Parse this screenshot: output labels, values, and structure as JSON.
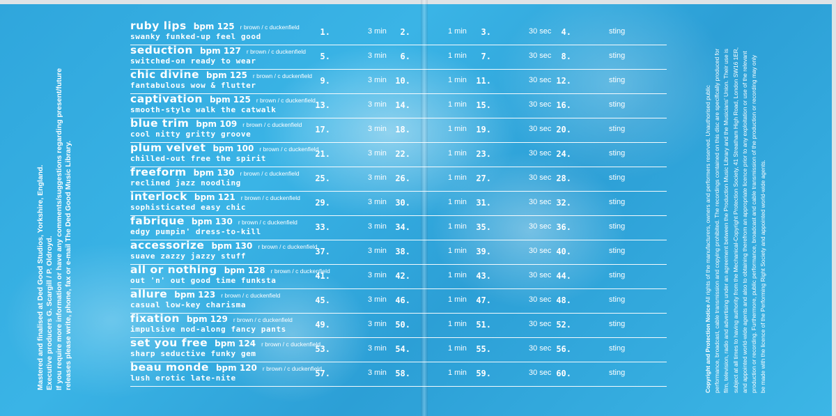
{
  "left_panel": {
    "lines": [
      "Mastered and finalised at Ded Good Studios, Yorkshire, England.",
      "Executive producers G. Scargill / P. Oldroyd.",
      "If you require more information or have any comments/suggestions regarding present/future",
      "releases please write, phone, fax or e-mail The Ded Good Music Library."
    ]
  },
  "notice": {
    "title": "Copyright and Protection Notice",
    "lines": [
      "All rights of the manufacturers, owners and performers reserved. Unauthorised public",
      "performance, broadcast, cable transmission and copying prohibited. The recordings contained on this disc are specifically produced for",
      "film, television, radio and advertising under an agreement between the Production Music Library and the Musicians' Union. Their use is",
      "subject at all times to having authority from the Mechanical-Copyright Protection Society, 41 Streatham High Road, London SW16 1ER,",
      "and appointed world-wide agents and also to obtaining therefrom an appropriate licence prior to any exploitation or use of the relevant",
      "production or recording. Furthermore, public performance, broadcast and cable transmission of the production or recording may only",
      "be made with the licence of the Performing Right Society and appointed world-wide agents."
    ]
  },
  "colors": {
    "background": "#34aee3",
    "text": "#ffffff"
  },
  "tracks": [
    {
      "title": "ruby lips",
      "bpm": "bpm 125",
      "credit": "r brown / c duckenfield",
      "desc": "swanky funked-up feel good",
      "cues": [
        {
          "n": "1.",
          "d": "3 min"
        },
        {
          "n": "2.",
          "d": "1 min"
        },
        {
          "n": "3.",
          "d": "30 sec"
        },
        {
          "n": "4.",
          "d": "sting"
        }
      ]
    },
    {
      "title": "seduction",
      "bpm": "bpm 127",
      "credit": "r brown / c duckenfield",
      "desc": "switched-on ready to wear",
      "cues": [
        {
          "n": "5.",
          "d": "3 min"
        },
        {
          "n": "6.",
          "d": "1 min"
        },
        {
          "n": "7.",
          "d": "30 sec"
        },
        {
          "n": "8.",
          "d": "sting"
        }
      ]
    },
    {
      "title": "chic divine",
      "bpm": "bpm 125",
      "credit": "r brown / c duckenfield",
      "desc": "fantabulous wow & flutter",
      "cues": [
        {
          "n": "9.",
          "d": "3 min"
        },
        {
          "n": "10.",
          "d": "1 min"
        },
        {
          "n": "11.",
          "d": "30 sec"
        },
        {
          "n": "12.",
          "d": "sting"
        }
      ]
    },
    {
      "title": "captivation",
      "bpm": "bpm 125",
      "credit": "r brown / c duckenfield",
      "desc": "smooth-style walk the catwalk",
      "cues": [
        {
          "n": "13.",
          "d": "3 min"
        },
        {
          "n": "14.",
          "d": "1 min"
        },
        {
          "n": "15.",
          "d": "30 sec"
        },
        {
          "n": "16.",
          "d": "sting"
        }
      ]
    },
    {
      "title": "blue trim",
      "bpm": "bpm 109",
      "credit": "r brown / c duckenfield",
      "desc": "cool nitty gritty groove",
      "cues": [
        {
          "n": "17.",
          "d": "3 min"
        },
        {
          "n": "18.",
          "d": "1 min"
        },
        {
          "n": "19.",
          "d": "30 sec"
        },
        {
          "n": "20.",
          "d": "sting"
        }
      ]
    },
    {
      "title": "plum velvet",
      "bpm": "bpm 100",
      "credit": "r brown / c duckenfield",
      "desc": "chilled-out free the spirit",
      "cues": [
        {
          "n": "21.",
          "d": "3 min"
        },
        {
          "n": "22.",
          "d": "1 min"
        },
        {
          "n": "23.",
          "d": "30 sec"
        },
        {
          "n": "24.",
          "d": "sting"
        }
      ]
    },
    {
      "title": "freeform",
      "bpm": "bpm 130",
      "credit": "r brown / c duckenfield",
      "desc": "reclined jazz noodling",
      "cues": [
        {
          "n": "25.",
          "d": "3 min"
        },
        {
          "n": "26.",
          "d": "1 min"
        },
        {
          "n": "27.",
          "d": "30 sec"
        },
        {
          "n": "28.",
          "d": "sting"
        }
      ]
    },
    {
      "title": "interlock",
      "bpm": "bpm 121",
      "credit": "r brown / c duckenfield",
      "desc": "sophisticated easy chic",
      "cues": [
        {
          "n": "29.",
          "d": "3 min"
        },
        {
          "n": "30.",
          "d": "1 min"
        },
        {
          "n": "31.",
          "d": "30 sec"
        },
        {
          "n": "32.",
          "d": "sting"
        }
      ]
    },
    {
      "title": "fabrique",
      "bpm": "bpm 130",
      "credit": "r brown / c duckenfield",
      "desc": "edgy pumpin' dress-to-kill",
      "cues": [
        {
          "n": "33.",
          "d": "3 min"
        },
        {
          "n": "34.",
          "d": "1 min"
        },
        {
          "n": "35.",
          "d": "30 sec"
        },
        {
          "n": "36.",
          "d": "sting"
        }
      ]
    },
    {
      "title": "accessorize",
      "bpm": "bpm 130",
      "credit": "r brown / c duckenfield",
      "desc": "suave zazzy jazzy stuff",
      "cues": [
        {
          "n": "37.",
          "d": "3 min"
        },
        {
          "n": "38.",
          "d": "1 min"
        },
        {
          "n": "39.",
          "d": "30 sec"
        },
        {
          "n": "40.",
          "d": "sting"
        }
      ]
    },
    {
      "title": "all or nothing",
      "bpm": "bpm 128",
      "credit": "r brown / c duckenfield",
      "desc": "out 'n' out good time funksta",
      "cues": [
        {
          "n": "41.",
          "d": "3 min"
        },
        {
          "n": "42.",
          "d": "1 min"
        },
        {
          "n": "43.",
          "d": "30 sec"
        },
        {
          "n": "44.",
          "d": "sting"
        }
      ]
    },
    {
      "title": "allure",
      "bpm": "bpm 123",
      "credit": "r brown / c duckenfield",
      "desc": "casual low-key charisma",
      "cues": [
        {
          "n": "45.",
          "d": "3 min"
        },
        {
          "n": "46.",
          "d": "1 min"
        },
        {
          "n": "47.",
          "d": "30 sec"
        },
        {
          "n": "48.",
          "d": "sting"
        }
      ]
    },
    {
      "title": "fixation",
      "bpm": "bpm 129",
      "credit": "r brown / c duckenfield",
      "desc": "impulsive nod-along fancy pants",
      "cues": [
        {
          "n": "49.",
          "d": "3 min"
        },
        {
          "n": "50.",
          "d": "1 min"
        },
        {
          "n": "51.",
          "d": "30 sec"
        },
        {
          "n": "52.",
          "d": "sting"
        }
      ]
    },
    {
      "title": "set you free",
      "bpm": "bpm 124",
      "credit": "r brown / c duckenfield",
      "desc": "sharp seductive funky gem",
      "cues": [
        {
          "n": "53.",
          "d": "3 min"
        },
        {
          "n": "54.",
          "d": "1 min"
        },
        {
          "n": "55.",
          "d": "30 sec"
        },
        {
          "n": "56.",
          "d": "sting"
        }
      ]
    },
    {
      "title": "beau monde",
      "bpm": "bpm 120",
      "credit": "r brown / c duckenfield",
      "desc": "lush erotic late-nite",
      "cues": [
        {
          "n": "57.",
          "d": "3 min"
        },
        {
          "n": "58.",
          "d": "1 min"
        },
        {
          "n": "59.",
          "d": "30 sec"
        },
        {
          "n": "60.",
          "d": "sting"
        }
      ]
    }
  ]
}
